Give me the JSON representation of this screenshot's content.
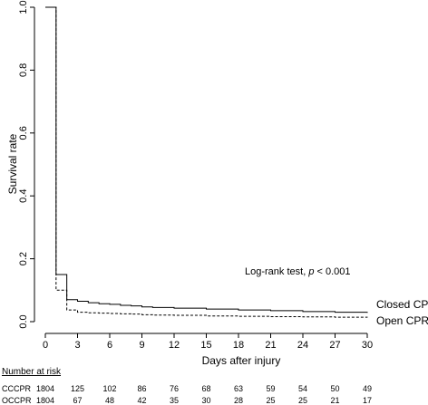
{
  "chart_data": {
    "type": "line",
    "title": "",
    "xlabel": "Days after injury",
    "ylabel": "Survival rate",
    "xlim": [
      0,
      30
    ],
    "ylim": [
      0,
      1.0
    ],
    "xticks": [
      0,
      3,
      6,
      9,
      12,
      15,
      18,
      21,
      24,
      27,
      30
    ],
    "yticks": [
      0.0,
      0.2,
      0.4,
      0.6,
      0.8,
      1.0
    ],
    "ytick_labels": [
      "0.0",
      "0.2",
      "0.4",
      "0.6",
      "0.8",
      "1.0"
    ],
    "grid": false,
    "annotation": {
      "prefix": "Log-rank test, ",
      "italic": "p",
      "suffix": " < 0.001"
    },
    "series": [
      {
        "name": "Closed CPR",
        "line_style": "solid",
        "x": [
          0,
          1,
          2,
          3,
          4,
          5,
          6,
          7,
          8,
          9,
          10,
          12,
          15,
          18,
          21,
          24,
          27,
          30
        ],
        "y": [
          1.0,
          0.15,
          0.07,
          0.065,
          0.06,
          0.057,
          0.055,
          0.052,
          0.05,
          0.047,
          0.045,
          0.043,
          0.04,
          0.037,
          0.035,
          0.032,
          0.03,
          0.028
        ]
      },
      {
        "name": "Open CPR",
        "line_style": "dashed",
        "x": [
          0,
          1,
          2,
          3,
          4,
          5,
          6,
          7,
          8,
          9,
          10,
          12,
          15,
          18,
          21,
          24,
          27,
          30
        ],
        "y": [
          1.0,
          0.1,
          0.037,
          0.03,
          0.028,
          0.027,
          0.026,
          0.025,
          0.024,
          0.022,
          0.021,
          0.02,
          0.018,
          0.017,
          0.016,
          0.015,
          0.014,
          0.013
        ]
      }
    ],
    "risk_table": {
      "title": "Number at risk",
      "times": [
        0,
        3,
        6,
        9,
        12,
        15,
        18,
        21,
        24,
        27,
        30
      ],
      "rows": [
        {
          "label": "CCCPR",
          "values": [
            1804,
            125,
            102,
            86,
            76,
            68,
            63,
            59,
            54,
            50,
            49
          ]
        },
        {
          "label": "OCCPR",
          "values": [
            1804,
            67,
            48,
            42,
            35,
            30,
            28,
            25,
            25,
            21,
            17
          ]
        }
      ]
    }
  }
}
